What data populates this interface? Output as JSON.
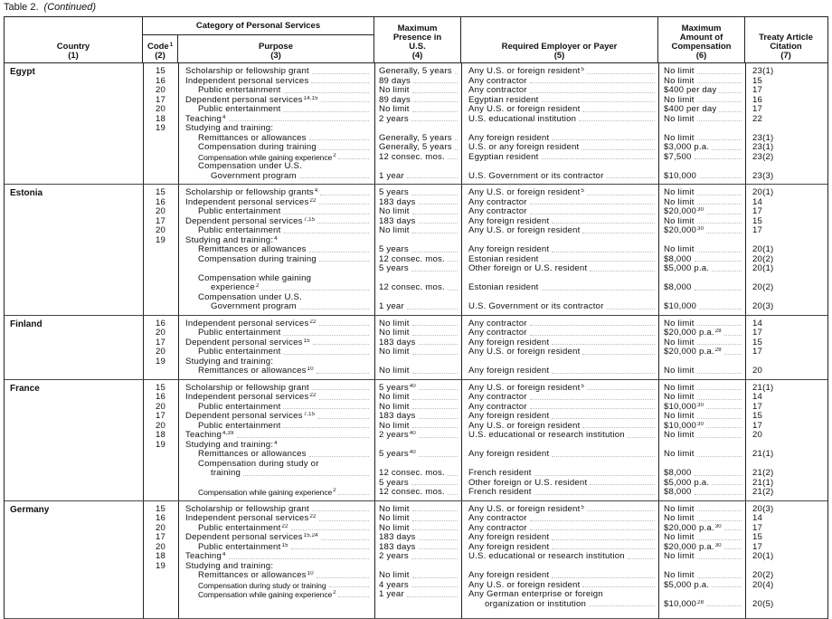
{
  "caption": {
    "label": "Table 2.",
    "continued": "(Continued)"
  },
  "header": {
    "category": "Category of Personal Services",
    "columns": [
      {
        "title": "Country",
        "num": "(1)"
      },
      {
        "title": "Code",
        "sup": "1",
        "num": "(2)"
      },
      {
        "title": "Purpose",
        "num": "(3)"
      },
      {
        "title": "Maximum Presence in U.S.",
        "num": "(4)"
      },
      {
        "title": "Required Employer or Payer",
        "num": "(5)"
      },
      {
        "title": "Maximum Amount of Compensation",
        "num": "(6)"
      },
      {
        "title": "Treaty Article Citation",
        "num": "(7)"
      }
    ]
  },
  "groups": [
    {
      "country": "Egypt",
      "lines": [
        {
          "code": "15",
          "purpose": "Scholarship or fellowship grant",
          "ind": 0,
          "presence": "Generally, 5 years",
          "employer": "Any U.S. or foreign resident",
          "employer_sup": "5",
          "amount": "No limit",
          "cite": "23(1)"
        },
        {
          "code": "16",
          "purpose": "Independent personal services",
          "ind": 0,
          "presence": "89 days",
          "employer": "Any contractor",
          "amount": "No limit",
          "cite": "15"
        },
        {
          "code": "20",
          "purpose": "Public entertainment",
          "ind": 1,
          "presence": "No limit",
          "employer": "Any contractor",
          "amount": "$400 per day",
          "cite": "17"
        },
        {
          "code": "17",
          "purpose": "Dependent personal services",
          "purpose_sup": "14,15",
          "ind": 0,
          "presence": "89 days",
          "employer": "Egyptian resident",
          "amount": "No limit",
          "cite": "16"
        },
        {
          "code": "20",
          "purpose": "Public entertainment",
          "ind": 1,
          "presence": "No limit",
          "employer": "Any U.S. or foreign resident",
          "amount": "$400 per day",
          "cite": "17"
        },
        {
          "code": "18",
          "purpose": "Teaching",
          "purpose_sup": "4",
          "ind": 0,
          "presence": "2 years",
          "employer": "U.S. educational institution",
          "amount": "No limit",
          "cite": "22"
        },
        {
          "code": "19",
          "purpose": "Studying and training:",
          "ind": 0,
          "noLead": true
        },
        {
          "purpose": "Remittances or allowances",
          "ind": 1,
          "presence": "Generally, 5 years",
          "employer": "Any foreign resident",
          "amount": "No limit",
          "cite": "23(1)"
        },
        {
          "purpose": "Compensation during training",
          "ind": 1,
          "presence": "Generally, 5 years",
          "employer": "U.S. or any foreign resident",
          "amount": "$3,000 p.a.",
          "cite": "23(1)"
        },
        {
          "purpose": "Compensation while gaining experience",
          "purpose_sup": "2",
          "ind": 1,
          "small": true,
          "presence": "12 consec. mos.",
          "employer": "Egyptian resident",
          "amount": "$7,500",
          "cite": "23(2)"
        },
        {
          "purpose": "Compensation under U.S.",
          "ind": 1,
          "noLead": true
        },
        {
          "purpose": "Government program",
          "ind": 2,
          "presence": "1 year",
          "employer": "U.S. Government or its contractor",
          "amount": "$10,000",
          "cite": "23(3)"
        }
      ]
    },
    {
      "country": "Estonia",
      "lines": [
        {
          "code": "15",
          "purpose": "Scholarship or fellowship grants",
          "purpose_sup": "4",
          "ind": 0,
          "presence": "5 years",
          "employer": "Any U.S. or foreign resident",
          "employer_sup": "5",
          "amount": "No limit",
          "cite": "20(1)"
        },
        {
          "code": "16",
          "purpose": "Independent personal services",
          "purpose_sup": "22",
          "ind": 0,
          "presence": "183 days",
          "employer": "Any contractor",
          "amount": "No limit",
          "cite": "14"
        },
        {
          "code": "20",
          "purpose": "Public entertainment",
          "ind": 1,
          "presence": "No limit",
          "employer": "Any contractor",
          "amount": "$20,000",
          "amount_sup": "30",
          "cite": "17"
        },
        {
          "code": "17",
          "purpose": "Dependent personal services",
          "purpose_sup": "7,15",
          "ind": 0,
          "presence": "183 days",
          "employer": "Any foreign resident",
          "amount": "No limit",
          "cite": "15"
        },
        {
          "code": "20",
          "purpose": "Public entertainment",
          "ind": 1,
          "presence": "No limit",
          "employer": "Any U.S. or foreign resident",
          "amount": "$20,000",
          "amount_sup": "30",
          "cite": "17"
        },
        {
          "code": "19",
          "purpose": "Studying and training:",
          "purpose_sup": "4",
          "ind": 0,
          "noLead": true
        },
        {
          "purpose": "Remittances or allowances",
          "ind": 1,
          "presence": "5 years",
          "employer": "Any foreign resident",
          "amount": "No limit",
          "cite": "20(1)"
        },
        {
          "purpose": "Compensation during training",
          "ind": 1,
          "presence": "12 consec. mos.",
          "employer": "Estonian resident",
          "amount": "$8,000",
          "cite": "20(2)"
        },
        {
          "presence": "5 years",
          "employer": "Other foreign or U.S. resident",
          "amount": "$5,000 p.a.",
          "cite": "20(1)"
        },
        {
          "purpose": "Compensation while gaining",
          "ind": 1,
          "noLead": true
        },
        {
          "purpose": "experience",
          "purpose_sup": "2",
          "ind": 2,
          "presence": "12 consec. mos.",
          "employer": "Estonian resident",
          "amount": "$8,000",
          "cite": "20(2)"
        },
        {
          "purpose": "Compensation under U.S.",
          "ind": 1,
          "noLead": true
        },
        {
          "purpose": "Government program",
          "ind": 2,
          "presence": "1 year",
          "employer": "U.S. Government or its contractor",
          "amount": "$10,000",
          "cite": "20(3)"
        }
      ]
    },
    {
      "country": "Finland",
      "lines": [
        {
          "code": "16",
          "purpose": "Independent personal services",
          "purpose_sup": "22",
          "ind": 0,
          "presence": "No limit",
          "employer": "Any contractor",
          "amount": "No limit",
          "cite": "14"
        },
        {
          "code": "20",
          "purpose": "Public entertainment",
          "ind": 1,
          "presence": "No limit",
          "employer": "Any contractor",
          "amount": "$20,000 p.a.",
          "amount_sup": "28",
          "cite": "17"
        },
        {
          "code": "17",
          "purpose": "Dependent personal services",
          "purpose_sup": "15",
          "ind": 0,
          "presence": "183 days",
          "employer": "Any foreign resident",
          "amount": "No limit",
          "cite": "15"
        },
        {
          "code": "20",
          "purpose": "Public entertainment",
          "ind": 1,
          "presence": "No limit",
          "employer": "Any U.S. or foreign resident",
          "amount": "$20,000 p.a.",
          "amount_sup": "28",
          "cite": "17"
        },
        {
          "code": "19",
          "purpose": "Studying and training:",
          "ind": 0,
          "noLead": true
        },
        {
          "purpose": "Remittances or allowances",
          "purpose_sup": "10",
          "ind": 1,
          "presence": "No limit",
          "employer": "Any foreign resident",
          "amount": "No limit",
          "cite": "20"
        }
      ]
    },
    {
      "country": "France",
      "lines": [
        {
          "code": "15",
          "purpose": "Scholarship or fellowship grant",
          "ind": 0,
          "presence": "5 years",
          "presence_sup": "40",
          "employer": "Any U.S. or foreign resident",
          "employer_sup": "5",
          "amount": "No limit",
          "cite": "21(1)"
        },
        {
          "code": "16",
          "purpose": "Independent personal services",
          "purpose_sup": "22",
          "ind": 0,
          "presence": "No limit",
          "employer": "Any contractor",
          "amount": "No limit",
          "cite": "14"
        },
        {
          "code": "20",
          "purpose": "Public entertainment",
          "ind": 1,
          "presence": "No limit",
          "employer": "Any contractor",
          "amount": "$10,000",
          "amount_sup": "30",
          "cite": "17"
        },
        {
          "code": "17",
          "purpose": "Dependent personal services",
          "purpose_sup": "7,15",
          "ind": 0,
          "presence": "183 days",
          "employer": "Any foreign resident",
          "amount": "No limit",
          "cite": "15"
        },
        {
          "code": "20",
          "purpose": "Public entertainment",
          "ind": 1,
          "presence": "No limit",
          "employer": "Any U.S. or foreign resident",
          "amount": "$10,000",
          "amount_sup": "30",
          "cite": "17"
        },
        {
          "code": "18",
          "purpose": "Teaching",
          "purpose_sup": "4,39",
          "ind": 0,
          "presence": "2 years",
          "presence_sup": "40",
          "employer": "U.S. educational or research institution",
          "amount": "No limit",
          "cite": "20"
        },
        {
          "code": "19",
          "purpose": "Studying and training:",
          "purpose_sup": "4",
          "ind": 0,
          "noLead": true
        },
        {
          "purpose": "Remittances or allowances",
          "ind": 1,
          "presence": "5 years",
          "presence_sup": "40",
          "employer": "Any foreign resident",
          "amount": "No limit",
          "cite": "21(1)"
        },
        {
          "purpose": "Compensation during study or",
          "ind": 1,
          "noLead": true
        },
        {
          "purpose": "training",
          "ind": 2,
          "presence": "12 consec. mos.",
          "employer": "French resident",
          "amount": "$8,000",
          "cite": "21(2)"
        },
        {
          "presence": "5 years",
          "employer": "Other foreign or U.S. resident",
          "amount": "$5,000 p.a.",
          "cite": "21(1)"
        },
        {
          "purpose": "Compensation while gaining experience",
          "purpose_sup": "2",
          "ind": 1,
          "small": true,
          "presence": "12 consec. mos.",
          "employer": "French resident",
          "amount": "$8,000",
          "cite": "21(2)"
        }
      ]
    },
    {
      "country": "Germany",
      "lines": [
        {
          "code": "15",
          "purpose": "Scholarship or fellowship grant",
          "ind": 0,
          "presence": "No limit",
          "employer": "Any U.S. or foreign resident",
          "employer_sup": "5",
          "amount": "No limit",
          "cite": "20(3)"
        },
        {
          "code": "16",
          "purpose": "Independent personal services",
          "purpose_sup": "22",
          "ind": 0,
          "presence": "No limit",
          "employer": "Any contractor",
          "amount": "No limit",
          "cite": "14"
        },
        {
          "code": "20",
          "purpose": "Public entertainment",
          "purpose_sup": "22",
          "ind": 1,
          "presence": "No limit",
          "employer": "Any contractor",
          "amount": "$20,000 p.a.",
          "amount_sup": "30",
          "cite": "17"
        },
        {
          "code": "17",
          "purpose": "Dependent personal services",
          "purpose_sup": "15,24",
          "ind": 0,
          "presence": "183 days",
          "employer": "Any foreign resident",
          "amount": "No limit",
          "cite": "15"
        },
        {
          "code": "20",
          "purpose": "Public entertainment",
          "purpose_sup": "15",
          "ind": 1,
          "presence": "183 days",
          "employer": "Any foreign resident",
          "amount": "$20,000 p.a.",
          "amount_sup": "30",
          "cite": "17"
        },
        {
          "code": "18",
          "purpose": "Teaching",
          "purpose_sup": "4",
          "ind": 0,
          "presence": "2 years",
          "employer": "U.S. educational or research institution",
          "amount": "No limit",
          "cite": "20(1)"
        },
        {
          "code": "19",
          "purpose": "Studying and training:",
          "ind": 0,
          "noLead": true
        },
        {
          "purpose": "Remittances or allowances",
          "purpose_sup": "10",
          "ind": 1,
          "presence": "No limit",
          "employer": "Any foreign resident",
          "amount": "No limit",
          "cite": "20(2)"
        },
        {
          "purpose": "Compensation during study or training",
          "ind": 1,
          "small": true,
          "presence": "4 years",
          "employer": "Any U.S. or foreign resident",
          "amount": "$5,000 p.a.",
          "cite": "20(4)"
        },
        {
          "purpose": "Compensation while gaining experience",
          "purpose_sup": "2",
          "ind": 1,
          "small": true,
          "presence": "1 year",
          "employer": "Any German enterprise or foreign",
          "employerNoLead": true
        },
        {
          "employer": "organization or institution",
          "employer_ind": 1,
          "amount": "$10,000",
          "amount_sup": "28",
          "cite": "20(5)"
        }
      ]
    }
  ]
}
